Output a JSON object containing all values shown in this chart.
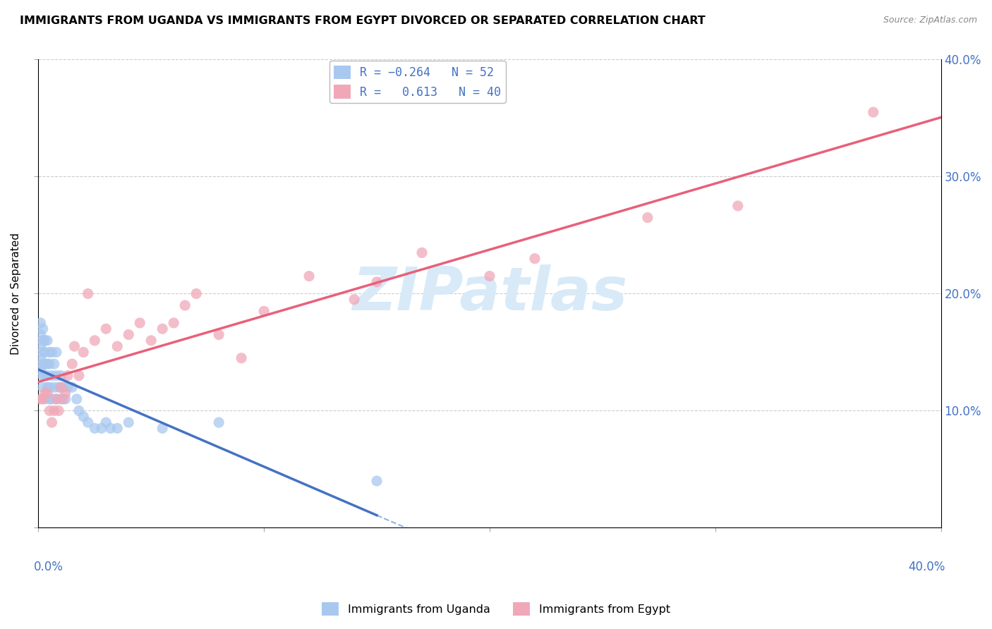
{
  "title": "IMMIGRANTS FROM UGANDA VS IMMIGRANTS FROM EGYPT DIVORCED OR SEPARATED CORRELATION CHART",
  "source": "Source: ZipAtlas.com",
  "ylabel": "Divorced or Separated",
  "yticks": [
    0.0,
    0.1,
    0.2,
    0.3,
    0.4
  ],
  "ytick_labels": [
    "",
    "10.0%",
    "20.0%",
    "30.0%",
    "40.0%"
  ],
  "xlim": [
    0.0,
    0.4
  ],
  "ylim": [
    0.0,
    0.4
  ],
  "color_uganda": "#a8c8f0",
  "color_egypt": "#f0a8b8",
  "color_trendline_uganda": "#4472c4",
  "color_trendline_egypt": "#e8607a",
  "watermark_color": "#d8eaf8",
  "uganda_x": [
    0.001,
    0.001,
    0.001,
    0.001,
    0.001,
    0.002,
    0.002,
    0.002,
    0.002,
    0.002,
    0.002,
    0.003,
    0.003,
    0.003,
    0.003,
    0.003,
    0.004,
    0.004,
    0.004,
    0.004,
    0.005,
    0.005,
    0.005,
    0.005,
    0.006,
    0.006,
    0.006,
    0.007,
    0.007,
    0.008,
    0.008,
    0.008,
    0.009,
    0.01,
    0.01,
    0.011,
    0.012,
    0.013,
    0.015,
    0.017,
    0.018,
    0.02,
    0.022,
    0.025,
    0.028,
    0.03,
    0.032,
    0.035,
    0.04,
    0.055,
    0.08,
    0.15
  ],
  "uganda_y": [
    0.135,
    0.145,
    0.155,
    0.165,
    0.175,
    0.12,
    0.13,
    0.14,
    0.15,
    0.16,
    0.17,
    0.11,
    0.13,
    0.14,
    0.15,
    0.16,
    0.12,
    0.13,
    0.14,
    0.16,
    0.11,
    0.12,
    0.14,
    0.15,
    0.11,
    0.13,
    0.15,
    0.12,
    0.14,
    0.11,
    0.13,
    0.15,
    0.12,
    0.11,
    0.13,
    0.12,
    0.11,
    0.12,
    0.12,
    0.11,
    0.1,
    0.095,
    0.09,
    0.085,
    0.085,
    0.09,
    0.085,
    0.085,
    0.09,
    0.085,
    0.09,
    0.04
  ],
  "egypt_x": [
    0.001,
    0.002,
    0.003,
    0.004,
    0.005,
    0.006,
    0.007,
    0.008,
    0.009,
    0.01,
    0.011,
    0.012,
    0.013,
    0.015,
    0.016,
    0.018,
    0.02,
    0.022,
    0.025,
    0.03,
    0.035,
    0.04,
    0.045,
    0.05,
    0.055,
    0.06,
    0.065,
    0.07,
    0.08,
    0.09,
    0.1,
    0.12,
    0.14,
    0.15,
    0.17,
    0.2,
    0.22,
    0.27,
    0.31,
    0.37
  ],
  "egypt_y": [
    0.11,
    0.11,
    0.115,
    0.115,
    0.1,
    0.09,
    0.1,
    0.11,
    0.1,
    0.12,
    0.11,
    0.115,
    0.13,
    0.14,
    0.155,
    0.13,
    0.15,
    0.2,
    0.16,
    0.17,
    0.155,
    0.165,
    0.175,
    0.16,
    0.17,
    0.175,
    0.19,
    0.2,
    0.165,
    0.145,
    0.185,
    0.215,
    0.195,
    0.21,
    0.235,
    0.215,
    0.23,
    0.265,
    0.275,
    0.355
  ]
}
